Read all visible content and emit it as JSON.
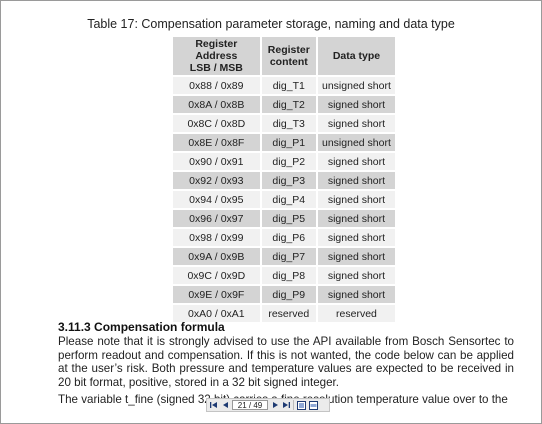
{
  "caption": "Table 17: Compensation parameter storage, naming and data type",
  "table": {
    "headers": {
      "col1_line1": "Register",
      "col1_line2": "Address",
      "col1_line3": "LSB / MSB",
      "col2_line1": "Register",
      "col2_line2": "content",
      "col3": "Data type"
    },
    "rows": [
      {
        "address": "0x88 / 0x89",
        "content": "dig_T1",
        "type": "unsigned short"
      },
      {
        "address": "0x8A / 0x8B",
        "content": "dig_T2",
        "type": "signed short"
      },
      {
        "address": "0x8C / 0x8D",
        "content": "dig_T3",
        "type": "signed short"
      },
      {
        "address": "0x8E / 0x8F",
        "content": "dig_P1",
        "type": "unsigned short"
      },
      {
        "address": "0x90 / 0x91",
        "content": "dig_P2",
        "type": "signed short"
      },
      {
        "address": "0x92 / 0x93",
        "content": "dig_P3",
        "type": "signed short"
      },
      {
        "address": "0x94 / 0x95",
        "content": "dig_P4",
        "type": "signed short"
      },
      {
        "address": "0x96 / 0x97",
        "content": "dig_P5",
        "type": "signed short"
      },
      {
        "address": "0x98 / 0x99",
        "content": "dig_P6",
        "type": "signed short"
      },
      {
        "address": "0x9A / 0x9B",
        "content": "dig_P7",
        "type": "signed short"
      },
      {
        "address": "0x9C / 0x9D",
        "content": "dig_P8",
        "type": "signed short"
      },
      {
        "address": "0x9E / 0x9F",
        "content": "dig_P9",
        "type": "signed short"
      },
      {
        "address": "0xA0 / 0xA1",
        "content": "reserved",
        "type": "reserved"
      }
    ]
  },
  "section": {
    "heading": "3.11.3 Compensation formula",
    "paragraph": "Please note that it is strongly advised to use the API available from Bosch Sensortec to perform readout and compensation. If this is not wanted, the code below can be applied at the user’s risk. Both pressure and temperature values are expected to be received in 20 bit format, positive, stored in a 32 bit signed integer.",
    "paragraph_cutoff": "The variable t_fine (signed 32 bit) carries a fine resolution temperature value over to the"
  },
  "toolbar": {
    "page_indicator": "21 / 49",
    "icons": [
      "first-page-icon",
      "previous-page-icon",
      "next-page-icon",
      "last-page-icon",
      "fit-page-icon",
      "fit-width-icon"
    ]
  },
  "colors": {
    "header_bg": "#d4d4d4",
    "row_light": "#f1f1f1",
    "row_dark": "#d4d4d4",
    "toolbar_bg": "#ebebeb",
    "toolbar_icon": "#1f3b73"
  }
}
